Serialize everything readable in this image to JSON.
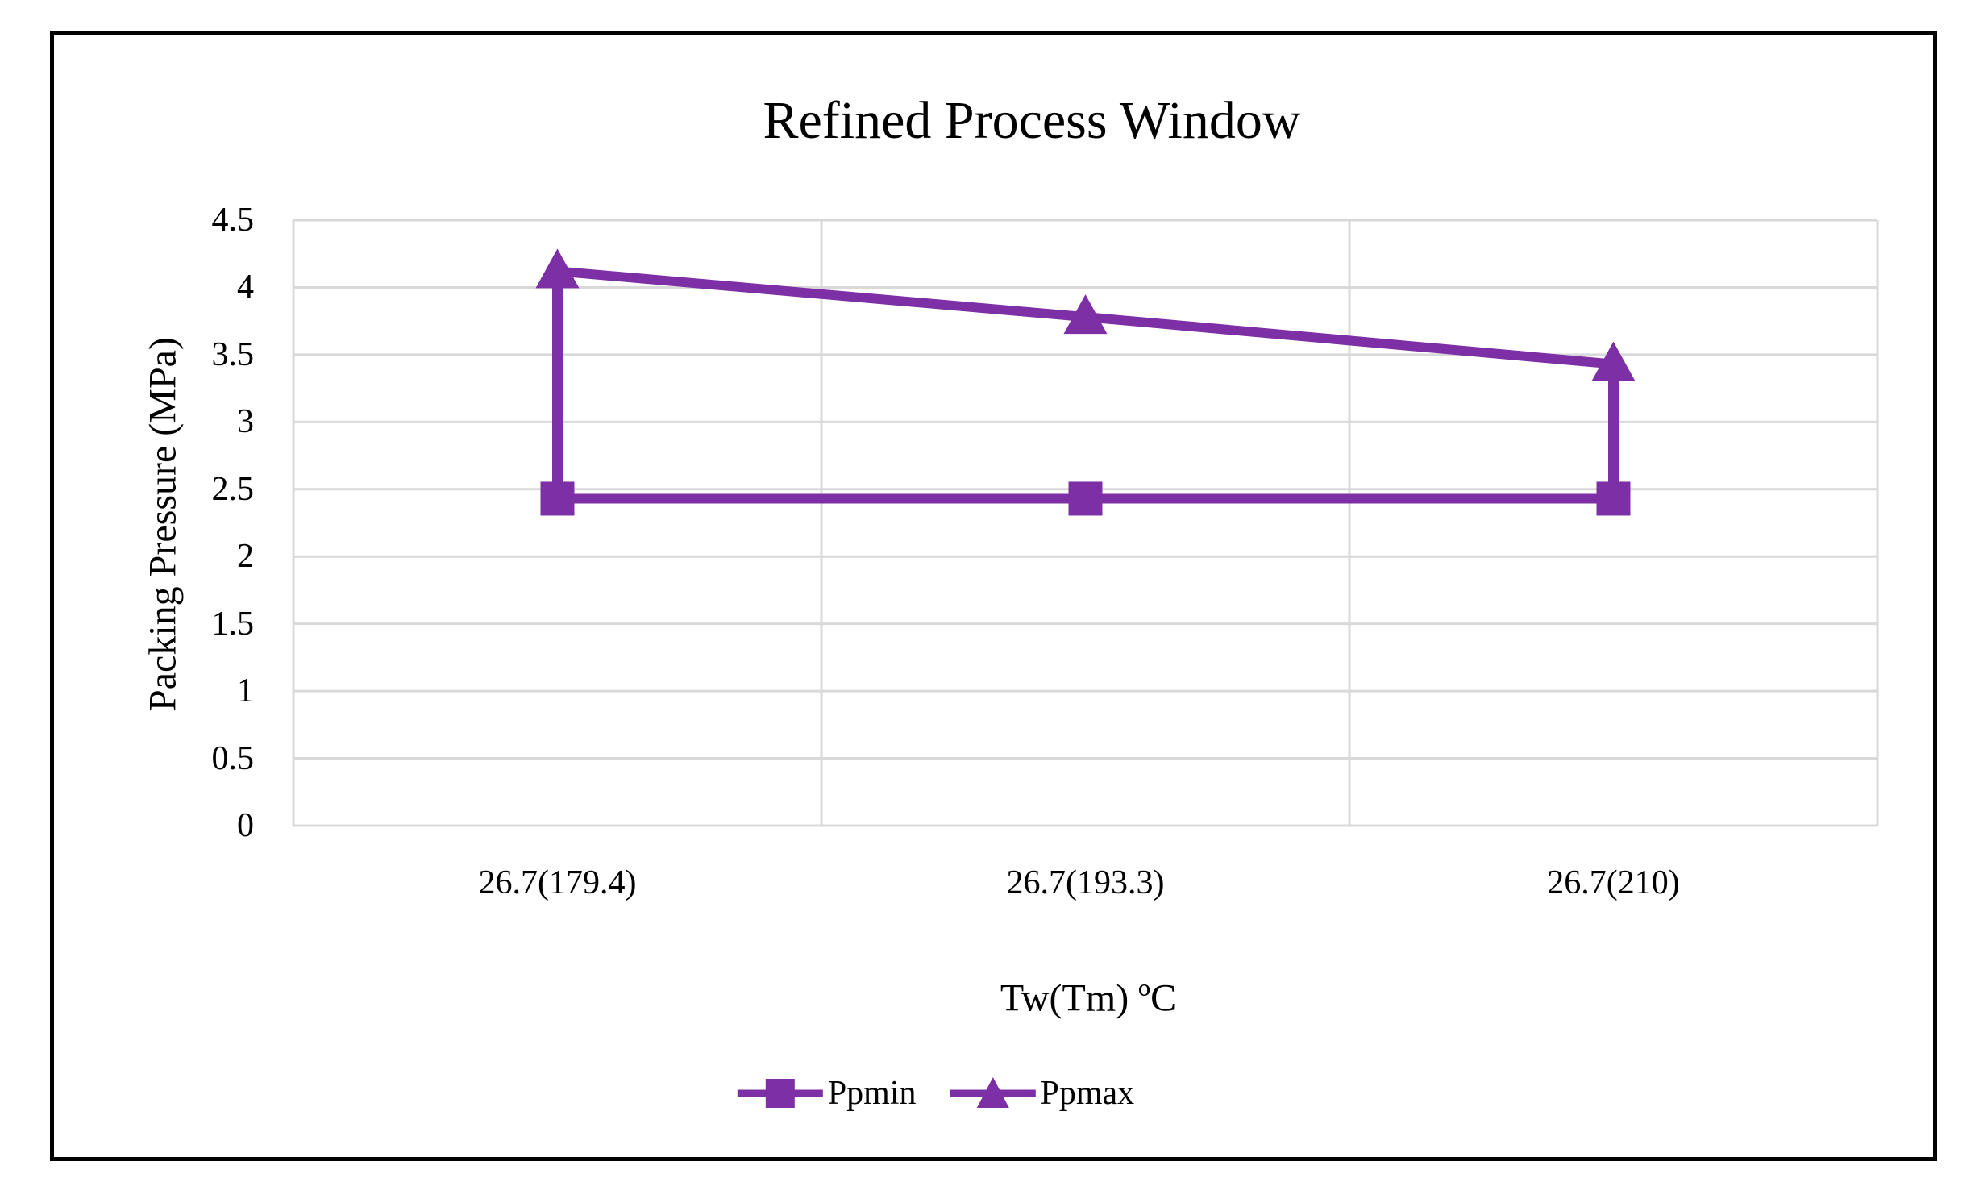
{
  "chart_data": {
    "type": "line",
    "title": "Refined Process Window",
    "xlabel": "Tw(Tm) ºC",
    "ylabel": "Packing Pressure (MPa)",
    "categories": [
      "26.7(179.4)",
      "26.7(193.3)",
      "26.7(210)"
    ],
    "series": [
      {
        "name": "Ppmin",
        "marker": "square",
        "values": [
          2.43,
          2.43,
          2.43
        ]
      },
      {
        "name": "Ppmax",
        "marker": "triangle",
        "values": [
          4.12,
          3.78,
          3.43
        ]
      }
    ],
    "window_connectors": [
      0,
      2
    ],
    "ylim": [
      0,
      4.5
    ],
    "ytick_step": 0.5,
    "ytick_labels": [
      "4.5",
      "4",
      "3.5",
      "3",
      "2.5",
      "2",
      "1.5",
      "1",
      "0.5",
      "0"
    ],
    "grid": true,
    "legend_position": "bottom",
    "colors": {
      "series": "#7D2FA6",
      "gridline": "#D9D9D9",
      "text": "#000000",
      "frame_border": "#000000",
      "background": "#FFFFFF"
    }
  }
}
